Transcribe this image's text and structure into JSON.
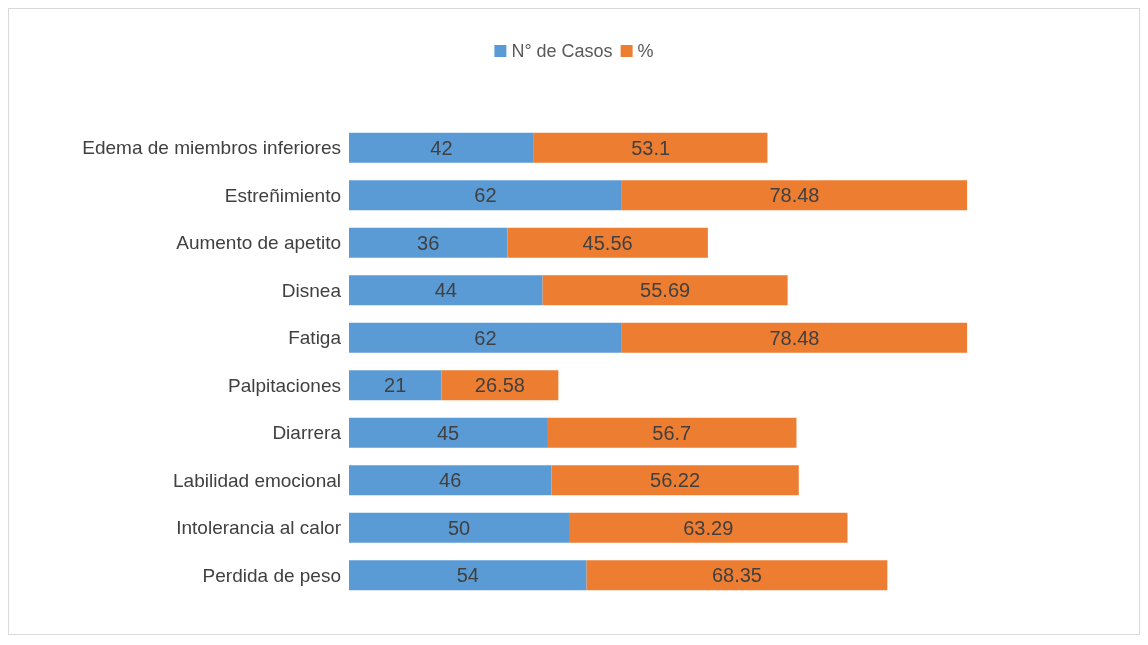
{
  "chart_data": {
    "type": "bar",
    "orientation": "horizontal",
    "stacked": true,
    "data_labels": true,
    "legend": "top",
    "categories": [
      "Edema de miembros inferiores",
      "Estreñimiento",
      "Aumento de apetito",
      "Disnea",
      "Fatiga",
      "Palpitaciones",
      "Diarrera",
      "Labilidad emocional",
      "Intolerancia al calor",
      "Perdida de peso"
    ],
    "series": [
      {
        "name": "N° de Casos",
        "color": "#5b9bd5",
        "values": [
          42,
          62,
          36,
          44,
          62,
          21,
          45,
          46,
          50,
          54
        ]
      },
      {
        "name": "%",
        "color": "#ed7d31",
        "values": [
          53.1,
          78.48,
          45.56,
          55.69,
          78.48,
          26.58,
          56.7,
          56.22,
          63.29,
          68.35
        ]
      }
    ]
  }
}
